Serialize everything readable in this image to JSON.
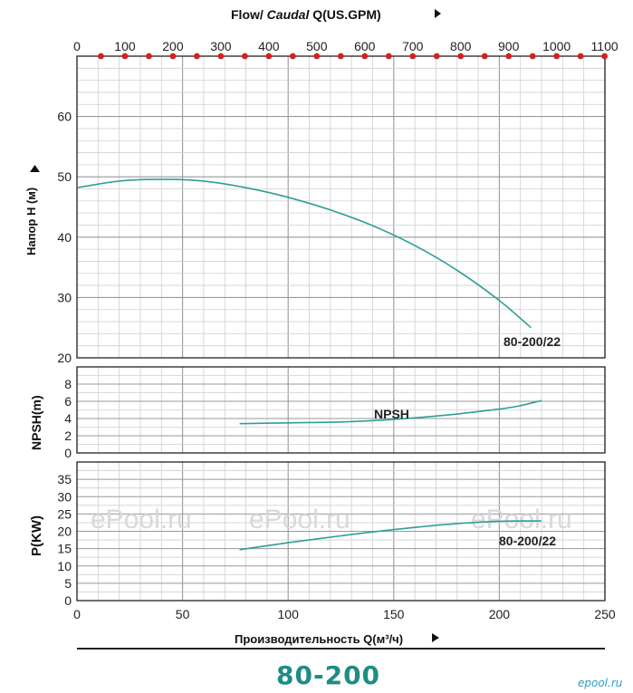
{
  "top_axis": {
    "label_bold": "Flow/ ",
    "label_italic": "Caudal",
    "label_rest": " Q(US.GPM)",
    "ticks": [
      0,
      100,
      200,
      300,
      400,
      500,
      600,
      700,
      800,
      900,
      1000,
      1100
    ],
    "marker_step": 50,
    "marker_max": 1100,
    "marker_color": "#d42020"
  },
  "bottom_axis": {
    "label": "Производительность Q(м³/ч)",
    "ticks": [
      0,
      50,
      100,
      150,
      200,
      250
    ],
    "range": [
      0,
      250
    ]
  },
  "panels": {
    "head": {
      "ylabel": "Напор H (м)",
      "ylim": [
        20,
        70
      ],
      "yticks": [
        20,
        30,
        40,
        50,
        60
      ]
    },
    "npsh": {
      "ylabel": "NPSH(m)",
      "ylim": [
        0,
        10
      ],
      "yticks": [
        0,
        2,
        4,
        6,
        8
      ]
    },
    "power": {
      "ylabel": "P(KW)",
      "ylim": [
        0,
        40
      ],
      "yticks": [
        0,
        5,
        10,
        15,
        20,
        25,
        30,
        35
      ]
    }
  },
  "chart_data": [
    {
      "type": "line",
      "panel": "head",
      "xlabel": "Производительность Q(м³/ч)",
      "ylabel": "Напор H (м)",
      "xlim": [
        0,
        250
      ],
      "ylim": [
        20,
        70
      ],
      "series": [
        {
          "name": "80-200/22",
          "x": [
            0,
            20,
            40,
            60,
            80,
            100,
            120,
            140,
            160,
            180,
            200,
            215
          ],
          "y": [
            48.2,
            49.3,
            49.6,
            49.3,
            48.2,
            46.6,
            44.5,
            41.9,
            38.6,
            34.5,
            29.5,
            25.0
          ]
        }
      ]
    },
    {
      "type": "line",
      "panel": "npsh",
      "xlabel": "Производительность Q(м³/ч)",
      "ylabel": "NPSH(m)",
      "xlim": [
        0,
        250
      ],
      "ylim": [
        0,
        10
      ],
      "series": [
        {
          "name": "NPSH",
          "x": [
            77,
            100,
            125,
            150,
            175,
            200,
            210,
            220
          ],
          "y": [
            3.4,
            3.5,
            3.6,
            3.9,
            4.4,
            5.1,
            5.5,
            6.1
          ]
        }
      ]
    },
    {
      "type": "line",
      "panel": "power",
      "xlabel": "Производительность Q(м³/ч)",
      "ylabel": "P(KW)",
      "xlim": [
        0,
        250
      ],
      "ylim": [
        0,
        40
      ],
      "series": [
        {
          "name": "80-200/22",
          "x": [
            77,
            100,
            125,
            150,
            175,
            200,
            220
          ],
          "y": [
            14.7,
            16.7,
            18.7,
            20.5,
            22.0,
            22.9,
            23.0
          ]
        }
      ]
    }
  ],
  "curve_color": "#2e9f95",
  "watermarks": [
    "ePool.ru",
    "ePool.ru",
    "ePool.ru"
  ],
  "model_title": "80-200",
  "logo": "epool.ru"
}
